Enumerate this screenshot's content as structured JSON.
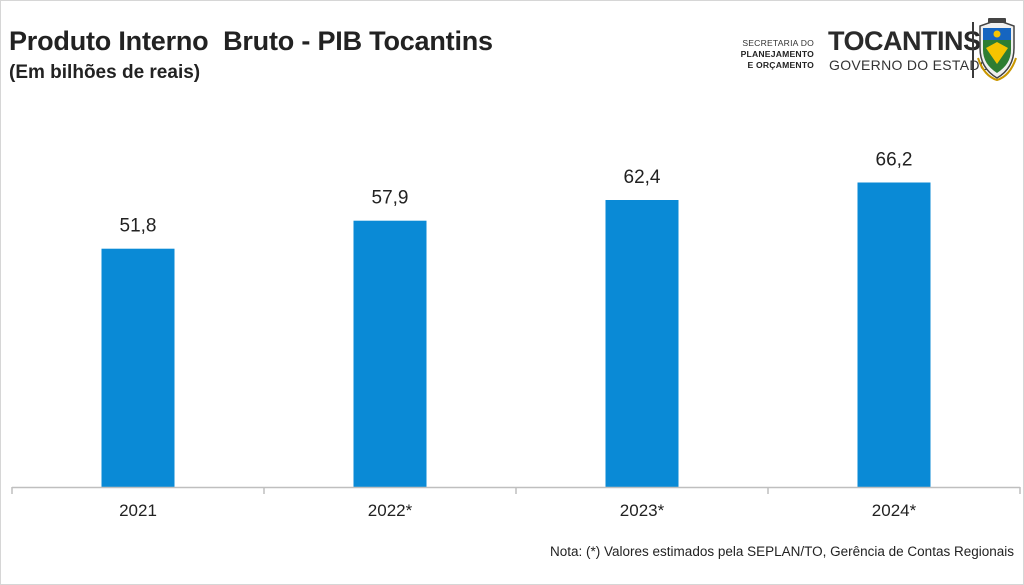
{
  "header": {
    "title": "Produto Interno  Bruto - PIB Tocantins",
    "subtitle": "(Em bilhões de reais)"
  },
  "logo": {
    "secretaria_line1": "SECRETARIA DO",
    "secretaria_line1_bold": "PLANEJAMENTO",
    "secretaria_line2": "E ORÇAMENTO",
    "brand": "TOCANTINS",
    "gov": "GOVERNO DO ESTADO",
    "icon": "state-coat-of-arms-icon"
  },
  "colors": {
    "bar": "#0a8ad6",
    "axis": "#bfbfbf",
    "text": "#222222"
  },
  "chart_data": {
    "type": "bar",
    "categories": [
      "2021",
      "2022*",
      "2023*",
      "2024*"
    ],
    "values": [
      51.8,
      57.9,
      62.4,
      66.2
    ],
    "data_labels": [
      "51,8",
      "57,9",
      "62,4",
      "66,2"
    ],
    "title": "Produto Interno  Bruto - PIB Tocantins",
    "subtitle": "(Em bilhões de reais)",
    "xlabel": "",
    "ylabel": "",
    "ylim": [
      0,
      90
    ],
    "grid": false,
    "legend": "none"
  },
  "footer": {
    "note": "Nota: (*) Valores estimados pela SEPLAN/TO, Gerência de Contas Regionais"
  }
}
